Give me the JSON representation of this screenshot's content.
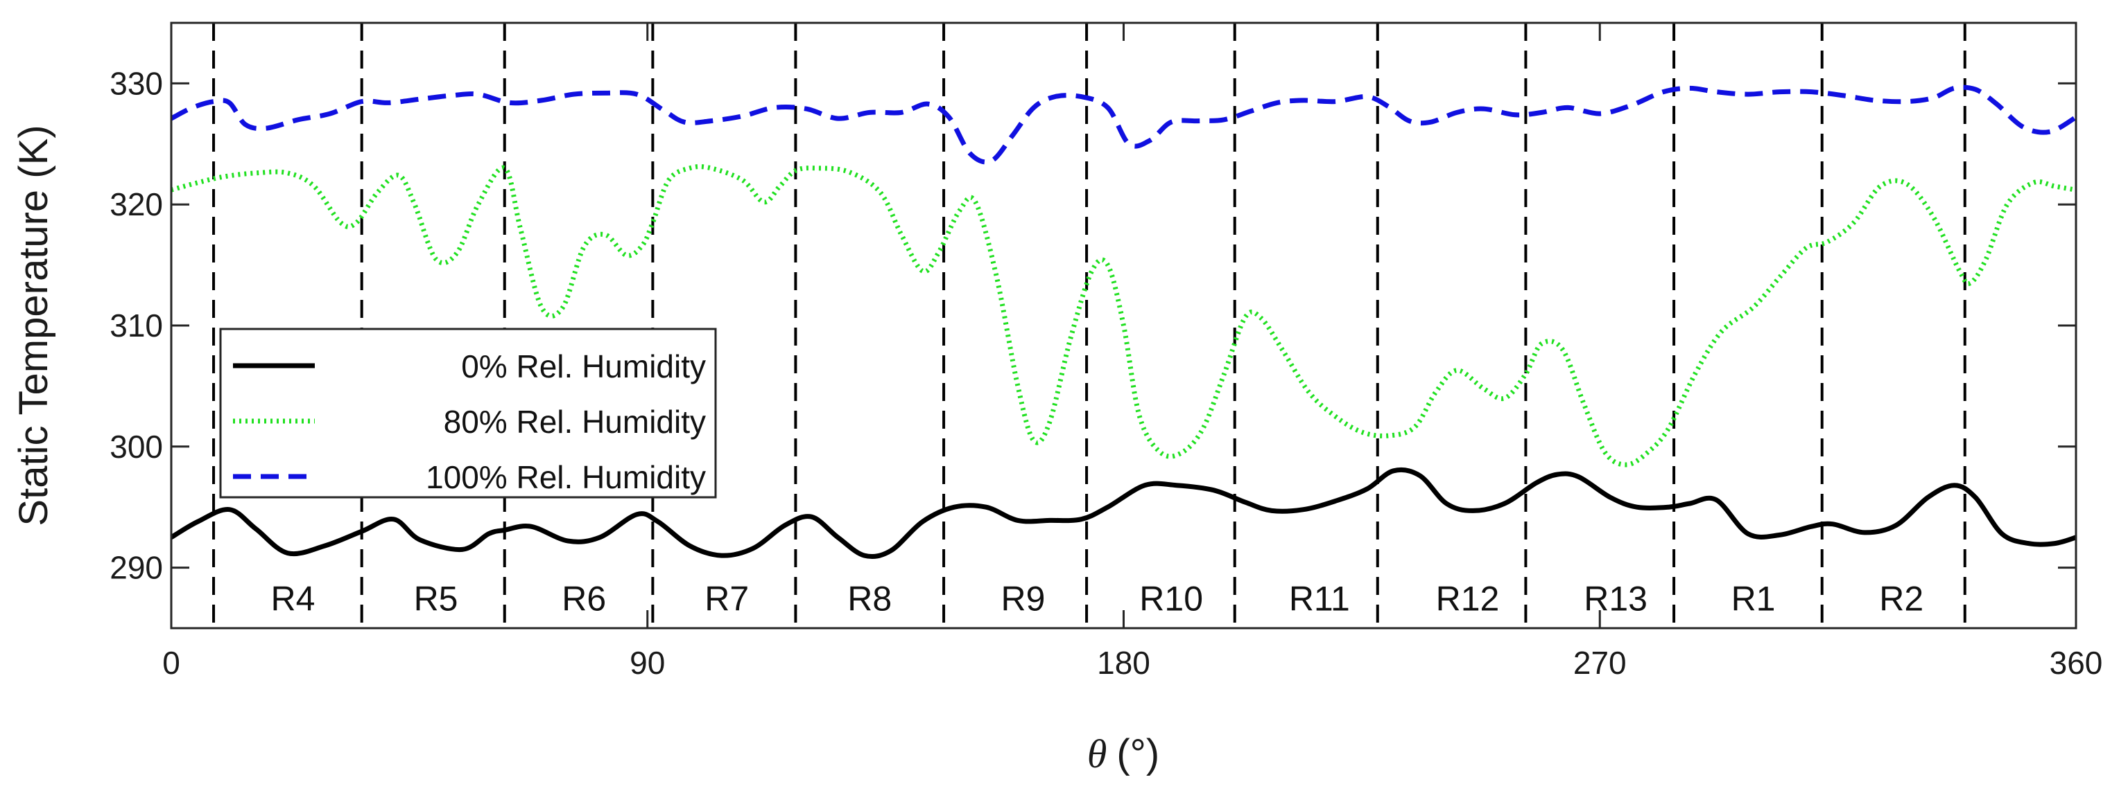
{
  "chart_data": {
    "type": "line",
    "xlabel_symbol": "θ",
    "xlabel_unit": "(°)",
    "ylabel": "Static Temperature (K)",
    "xlim": [
      0,
      360
    ],
    "ylim": [
      285,
      335
    ],
    "xticks": [
      0,
      90,
      180,
      270,
      360
    ],
    "yticks": [
      290,
      300,
      310,
      320,
      330
    ],
    "xtick_labels": [
      "0",
      "90",
      "180",
      "270",
      "360"
    ],
    "ytick_labels": [
      "290",
      "300",
      "310",
      "320",
      "330"
    ],
    "region_boundaries": [
      8,
      36,
      63,
      91,
      118,
      146,
      173,
      201,
      228,
      256,
      284,
      312,
      339
    ],
    "regions": [
      {
        "label": "R4",
        "x": 23
      },
      {
        "label": "R5",
        "x": 50
      },
      {
        "label": "R6",
        "x": 78
      },
      {
        "label": "R7",
        "x": 105
      },
      {
        "label": "R8",
        "x": 132
      },
      {
        "label": "R9",
        "x": 161
      },
      {
        "label": "R10",
        "x": 189
      },
      {
        "label": "R11",
        "x": 217
      },
      {
        "label": "R12",
        "x": 245
      },
      {
        "label": "R13",
        "x": 273
      },
      {
        "label": "R1",
        "x": 299
      },
      {
        "label": "R2",
        "x": 327
      }
    ],
    "legend": {
      "location": "left",
      "entries": [
        {
          "label": "0% Rel. Humidity",
          "series": 0
        },
        {
          "label": "80% Rel. Humidity",
          "series": 1
        },
        {
          "label": "100% Rel. Humidity",
          "series": 2
        }
      ]
    },
    "series": [
      {
        "name": "0% Rel. Humidity",
        "color": "#000000",
        "style": "solid",
        "x": [
          0,
          5,
          11,
          16,
          22,
          29,
          36,
          42,
          47,
          55,
          60,
          63,
          68,
          75,
          81,
          88,
          92,
          98,
          104,
          110,
          116,
          121,
          126,
          131,
          136,
          142,
          148,
          154,
          160,
          166,
          172,
          177,
          184,
          190,
          197,
          203,
          208,
          214,
          220,
          226,
          231,
          236,
          241,
          246,
          252,
          258,
          262,
          266,
          272,
          277,
          283,
          287,
          292,
          298,
          304,
          310,
          314,
          320,
          326,
          332,
          337,
          341,
          346,
          351,
          356,
          360
        ],
        "y": [
          292.5,
          293.8,
          294.8,
          293.2,
          291.2,
          291.8,
          293.0,
          294.0,
          292.3,
          291.5,
          292.8,
          293.1,
          293.4,
          292.2,
          292.5,
          294.4,
          293.8,
          291.8,
          291.0,
          291.6,
          293.5,
          294.2,
          292.5,
          291.0,
          291.4,
          293.8,
          295.0,
          295.0,
          293.9,
          293.9,
          294.0,
          295.0,
          296.8,
          296.8,
          296.4,
          295.4,
          294.7,
          294.8,
          295.5,
          296.5,
          298.0,
          297.6,
          295.3,
          294.7,
          295.3,
          297.0,
          297.7,
          297.5,
          295.8,
          295.0,
          295.0,
          295.3,
          295.6,
          292.8,
          292.7,
          293.4,
          293.6,
          292.9,
          293.5,
          295.8,
          296.8,
          295.8,
          292.8,
          292.0,
          292.0,
          292.5
        ]
      },
      {
        "name": "80% Rel. Humidity",
        "color": "#21e021",
        "style": "dotted",
        "x": [
          0,
          5,
          10,
          16,
          22,
          27,
          32,
          35,
          39,
          43,
          46,
          50,
          54,
          58,
          63,
          66,
          70,
          74,
          78,
          82,
          86,
          89,
          91,
          94,
          98,
          102,
          108,
          112,
          115,
          118,
          122,
          128,
          134,
          138,
          142,
          145,
          149,
          152,
          156,
          160,
          163,
          166,
          170,
          174,
          177,
          180,
          183,
          187,
          191,
          195,
          199,
          203,
          206,
          210,
          215,
          220,
          225,
          230,
          235,
          239,
          243,
          248,
          252,
          256,
          259,
          263,
          267,
          271,
          275,
          279,
          283,
          288,
          293,
          299,
          304,
          309,
          313,
          318,
          323,
          328,
          333,
          338,
          340,
          343,
          347,
          352,
          356,
          360
        ],
        "y": [
          321.2,
          321.8,
          322.3,
          322.6,
          322.6,
          321.5,
          318.5,
          318.5,
          321.0,
          322.4,
          320.0,
          315.5,
          316.0,
          320.0,
          323.0,
          318.0,
          311.5,
          311.5,
          316.5,
          317.5,
          315.8,
          316.6,
          318.5,
          322.0,
          323.0,
          323.0,
          322.0,
          320.2,
          321.5,
          322.8,
          323.0,
          322.7,
          321.0,
          317.5,
          314.5,
          316.0,
          319.5,
          320.2,
          314.0,
          305.0,
          300.5,
          302.0,
          309.0,
          314.5,
          315.0,
          310.0,
          302.5,
          299.5,
          299.5,
          301.5,
          306.0,
          310.7,
          310.6,
          308.0,
          304.5,
          302.5,
          301.2,
          300.9,
          301.6,
          304.5,
          306.3,
          304.8,
          304.0,
          306.0,
          308.5,
          308.0,
          303.5,
          299.5,
          298.5,
          299.5,
          301.5,
          306.0,
          309.5,
          311.5,
          314.0,
          316.4,
          316.9,
          318.5,
          321.5,
          321.7,
          319.0,
          314.5,
          313.5,
          315.5,
          320.0,
          321.8,
          321.5,
          321.2
        ]
      },
      {
        "name": "100% Rel. Humidity",
        "color": "#1010e0",
        "style": "dashed",
        "x": [
          0,
          4,
          8,
          11,
          14,
          18,
          24,
          30,
          36,
          41,
          47,
          53,
          58,
          64,
          70,
          76,
          82,
          88,
          93,
          97,
          102,
          108,
          114,
          120,
          126,
          132,
          138,
          143,
          147,
          151,
          155,
          159,
          163,
          167,
          172,
          177,
          181,
          185,
          189,
          194,
          199,
          204,
          209,
          214,
          220,
          226,
          230,
          234,
          238,
          243,
          248,
          254,
          259,
          264,
          270,
          276,
          282,
          287,
          292,
          298,
          304,
          310,
          316,
          322,
          328,
          333,
          337,
          341,
          345,
          350,
          355,
          360
        ],
        "y": [
          327.1,
          328.0,
          328.5,
          328.4,
          326.6,
          326.3,
          327.0,
          327.5,
          328.5,
          328.4,
          328.7,
          329.0,
          329.1,
          328.4,
          328.6,
          329.1,
          329.2,
          329.1,
          327.8,
          326.8,
          326.9,
          327.3,
          328.0,
          327.9,
          327.1,
          327.6,
          327.6,
          328.3,
          327.2,
          324.2,
          323.6,
          325.7,
          328.0,
          328.9,
          328.9,
          328.0,
          325.0,
          325.3,
          326.8,
          326.9,
          327.0,
          327.7,
          328.4,
          328.6,
          328.5,
          328.9,
          328.1,
          326.9,
          326.8,
          327.6,
          327.9,
          327.4,
          327.6,
          328.0,
          327.5,
          328.2,
          329.3,
          329.6,
          329.3,
          329.1,
          329.3,
          329.3,
          329.0,
          328.6,
          328.5,
          328.8,
          329.6,
          329.5,
          328.3,
          326.4,
          326.0,
          327.2
        ]
      }
    ]
  }
}
